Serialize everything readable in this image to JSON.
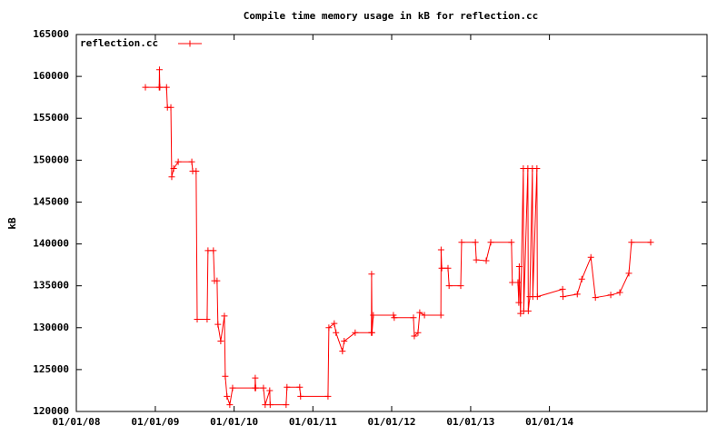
{
  "chart_data": {
    "type": "line",
    "title": "Compile time memory usage in kB for reflection.cc",
    "y_label": "kB",
    "legend": "top-left",
    "x": [
      "2008-11-16",
      "2009-01-19",
      "2009-01-20",
      "2009-01-22",
      "2009-02-22",
      "2009-02-26",
      "2009-03-14",
      "2009-03-18",
      "2009-03-27",
      "2009-04-17",
      "2009-06-19",
      "2009-06-23",
      "2009-07-09",
      "2009-07-14",
      "2009-08-29",
      "2009-09-02",
      "2009-09-27",
      "2009-10-02",
      "2009-10-14",
      "2009-10-18",
      "2009-10-31",
      "2009-11-17",
      "2009-11-21",
      "2009-11-29",
      "2009-12-12",
      "2009-12-25",
      "2010-04-08",
      "2010-04-09",
      "2010-04-11",
      "2010-05-17",
      "2010-05-25",
      "2010-06-15",
      "2010-06-17",
      "2010-08-30",
      "2010-09-03",
      "2010-11-01",
      "2010-11-05",
      "2011-03-12",
      "2011-03-16",
      "2011-04-10",
      "2011-04-18",
      "2011-05-18",
      "2011-05-26",
      "2011-07-16",
      "2011-09-29",
      "2011-09-30",
      "2011-10-02",
      "2011-10-08",
      "2012-01-09",
      "2012-01-13",
      "2012-04-11",
      "2012-04-15",
      "2012-05-02",
      "2012-05-10",
      "2012-06-01",
      "2012-08-16",
      "2012-08-17",
      "2012-08-20",
      "2012-09-18",
      "2012-09-23",
      "2012-11-16",
      "2012-11-20",
      "2013-01-23",
      "2013-01-27",
      "2013-03-14",
      "2013-04-04",
      "2013-07-09",
      "2013-07-13",
      "2013-08-08",
      "2013-08-12",
      "2013-08-14",
      "2013-08-20",
      "2013-09-02",
      "2013-09-04",
      "2013-09-23",
      "2013-09-25",
      "2013-10-02",
      "2013-10-14",
      "2013-10-16",
      "2013-11-04",
      "2013-11-06",
      "2014-03-03",
      "2014-03-05",
      "2014-05-10",
      "2014-05-31",
      "2014-07-12",
      "2014-08-02",
      "2014-10-12",
      "2014-11-23",
      "2015-01-04",
      "2015-01-16",
      "2015-04-15"
    ],
    "series": [
      {
        "name": "reflection.cc",
        "color": "#ff0000",
        "values": [
          158700,
          158700,
          160800,
          158700,
          158700,
          156300,
          156300,
          148000,
          149000,
          149800,
          149800,
          148700,
          148700,
          131000,
          131000,
          139200,
          139200,
          135600,
          135600,
          130400,
          128400,
          131400,
          124200,
          121800,
          120800,
          122800,
          122800,
          124000,
          122800,
          122800,
          120800,
          122500,
          120800,
          120800,
          122900,
          122900,
          121800,
          121800,
          130000,
          130500,
          129400,
          127200,
          128400,
          129400,
          129400,
          136400,
          129400,
          131500,
          131500,
          131200,
          131200,
          129000,
          129400,
          131800,
          131500,
          131500,
          139300,
          137100,
          137100,
          135000,
          135000,
          140200,
          140200,
          138100,
          138000,
          140200,
          140200,
          135400,
          135400,
          133000,
          137300,
          131700,
          149000,
          132000,
          149000,
          132000,
          133700,
          149000,
          133700,
          149000,
          133700,
          134600,
          133700,
          134000,
          135800,
          138400,
          133600,
          133900,
          134200,
          136500,
          140200,
          140200
        ]
      }
    ],
    "xlim": [
      "2008-01-01",
      "2016-01-01"
    ],
    "xticks": [
      {
        "value": "2008-01-01",
        "label": "01/01/08"
      },
      {
        "value": "2009-01-01",
        "label": "01/01/09"
      },
      {
        "value": "2010-01-01",
        "label": "01/01/10"
      },
      {
        "value": "2011-01-01",
        "label": "01/01/11"
      },
      {
        "value": "2012-01-01",
        "label": "01/01/12"
      },
      {
        "value": "2013-01-01",
        "label": "01/01/13"
      },
      {
        "value": "2014-01-01",
        "label": "01/01/14"
      }
    ],
    "ylim": [
      120000,
      165000
    ],
    "yticks": [
      120000,
      125000,
      130000,
      135000,
      140000,
      145000,
      150000,
      155000,
      160000,
      165000
    ]
  }
}
